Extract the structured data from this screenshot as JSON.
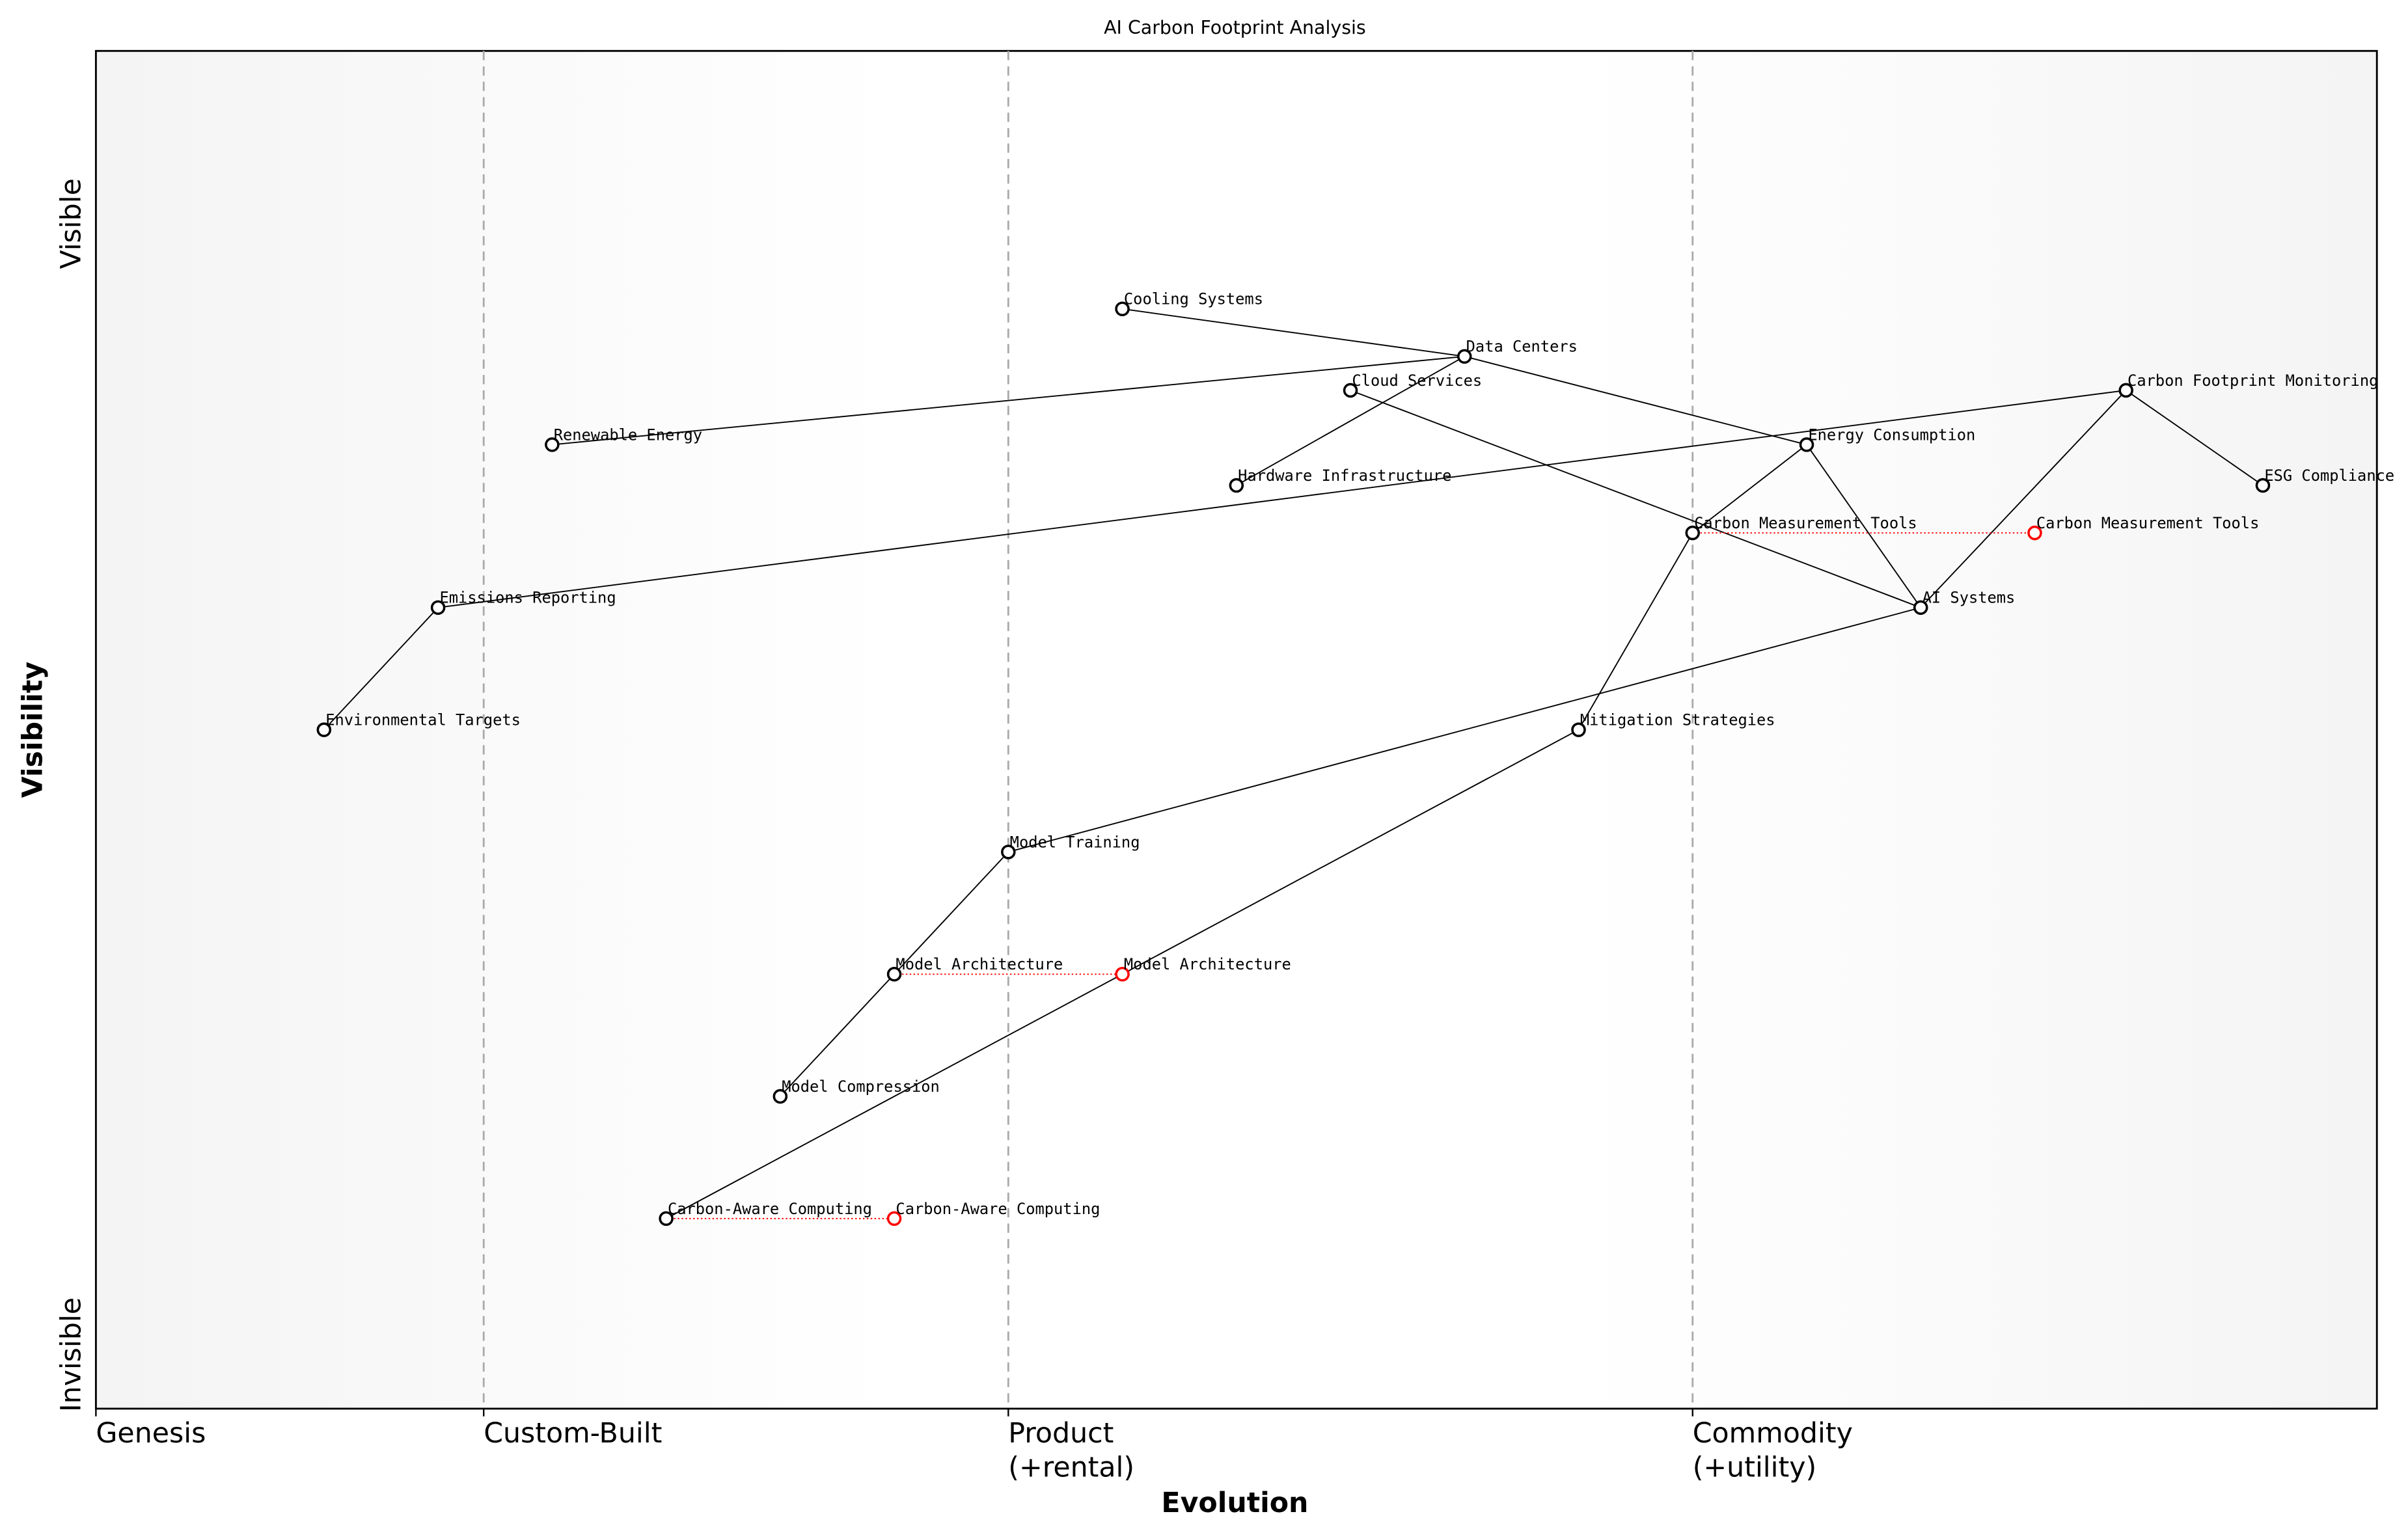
{
  "chart_data": {
    "type": "wardley-map",
    "title": "AI Carbon Footprint Analysis",
    "xlabel": "Evolution",
    "ylabel": "Visibility",
    "y_top_label": "Visible",
    "y_bottom_label": "Invisible",
    "xlim": [
      0,
      1
    ],
    "ylim": [
      0,
      1
    ],
    "stages": [
      {
        "label": "Genesis",
        "x": 0.0
      },
      {
        "label": "Custom-Built",
        "x": 0.17
      },
      {
        "label": "Product\n(+rental)",
        "x": 0.4
      },
      {
        "label": "Commodity\n(+utility)",
        "x": 0.7
      }
    ],
    "components": [
      {
        "name": "Cooling Systems",
        "x": 0.45,
        "y": 0.81
      },
      {
        "name": "Data Centers",
        "x": 0.6,
        "y": 0.775
      },
      {
        "name": "Cloud Services",
        "x": 0.55,
        "y": 0.75
      },
      {
        "name": "Renewable Energy",
        "x": 0.2,
        "y": 0.71
      },
      {
        "name": "Energy Consumption",
        "x": 0.75,
        "y": 0.71
      },
      {
        "name": "Carbon Footprint Monitoring",
        "x": 0.89,
        "y": 0.75
      },
      {
        "name": "Hardware Infrastructure",
        "x": 0.5,
        "y": 0.68
      },
      {
        "name": "ESG Compliance",
        "x": 0.95,
        "y": 0.68
      },
      {
        "name": "Carbon Measurement Tools",
        "x": 0.7,
        "y": 0.645
      },
      {
        "name": "AI Systems",
        "x": 0.8,
        "y": 0.59
      },
      {
        "name": "Emissions Reporting",
        "x": 0.15,
        "y": 0.59
      },
      {
        "name": "Environmental Targets",
        "x": 0.1,
        "y": 0.5
      },
      {
        "name": "Mitigation Strategies",
        "x": 0.65,
        "y": 0.5
      },
      {
        "name": "Model Training",
        "x": 0.4,
        "y": 0.41
      },
      {
        "name": "Model Architecture",
        "x": 0.35,
        "y": 0.32
      },
      {
        "name": "Model Compression",
        "x": 0.3,
        "y": 0.23
      },
      {
        "name": "Carbon-Aware Computing",
        "x": 0.25,
        "y": 0.14
      }
    ],
    "evolutions": [
      {
        "name": "Carbon Measurement Tools",
        "from_x": 0.7,
        "to_x": 0.85,
        "y": 0.645
      },
      {
        "name": "Model Architecture",
        "from_x": 0.35,
        "to_x": 0.45,
        "y": 0.32
      },
      {
        "name": "Carbon-Aware Computing",
        "from_x": 0.25,
        "to_x": 0.35,
        "y": 0.14
      }
    ],
    "links": [
      [
        "Cooling Systems",
        "Data Centers"
      ],
      [
        "Data Centers",
        "Renewable Energy"
      ],
      [
        "Data Centers",
        "Hardware Infrastructure"
      ],
      [
        "Data Centers",
        "Energy Consumption"
      ],
      [
        "Cloud Services",
        "AI Systems"
      ],
      [
        "Energy Consumption",
        "Carbon Measurement Tools"
      ],
      [
        "Energy Consumption",
        "AI Systems"
      ],
      [
        "Carbon Footprint Monitoring",
        "Emissions Reporting"
      ],
      [
        "Carbon Footprint Monitoring",
        "ESG Compliance"
      ],
      [
        "Carbon Footprint Monitoring",
        "AI Systems"
      ],
      [
        "Emissions Reporting",
        "Environmental Targets"
      ],
      [
        "Carbon Measurement Tools",
        "Mitigation Strategies"
      ],
      [
        "AI Systems",
        "Model Training"
      ],
      [
        "Model Training",
        "Model Architecture"
      ],
      [
        "Model Architecture",
        "Model Compression"
      ],
      [
        "Mitigation Strategies",
        "Carbon-Aware Computing"
      ]
    ],
    "colors": {
      "node": "#000000",
      "evolved": "#ff0000",
      "stage_line": "#aaaaaa",
      "edge_bg": "#f5f5f5"
    }
  }
}
